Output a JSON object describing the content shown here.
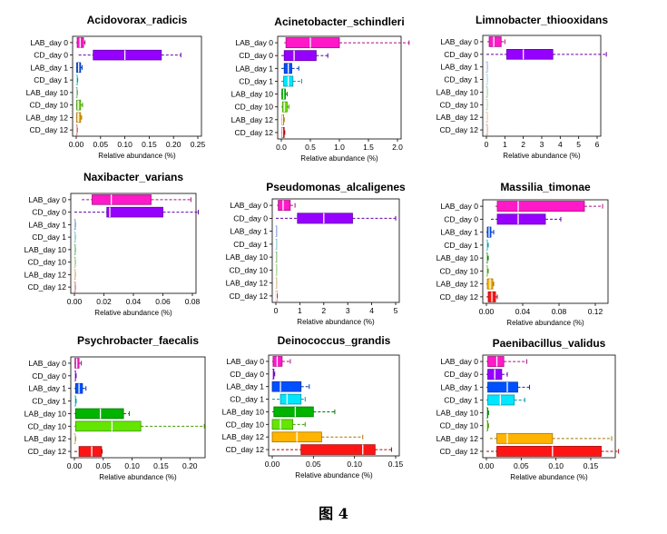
{
  "figure_caption": "图 4",
  "chart_data": [
    {
      "type": "boxplot",
      "title": "Acidovorax_radicis",
      "xlabel": "Relative abundance (%)",
      "xlim": [
        0,
        0.25
      ],
      "xticks": [
        "0.00",
        "0.05",
        "0.10",
        "0.15",
        "0.20",
        "0.25"
      ],
      "categories": [
        "LAB_day 0",
        "CD_day 0",
        "LAB_day 1",
        "CD_day 1",
        "LAB_day 10",
        "CD_day 10",
        "LAB_day 12",
        "CD_day 12"
      ],
      "boxes": [
        {
          "min": 0.0,
          "q1": 0.002,
          "median": 0.008,
          "q3": 0.015,
          "max": 0.018
        },
        {
          "min": 0.005,
          "q1": 0.035,
          "median": 0.1,
          "q3": 0.175,
          "max": 0.215
        },
        {
          "min": 0.0,
          "q1": 0.001,
          "median": 0.005,
          "q3": 0.009,
          "max": 0.012
        },
        {
          "min": 0.0,
          "q1": 0.0,
          "median": 0.0,
          "q3": 0.002,
          "max": 0.003
        },
        {
          "min": 0.0,
          "q1": 0.0,
          "median": 0.0,
          "q3": 0.001,
          "max": 0.002
        },
        {
          "min": 0.0,
          "q1": 0.001,
          "median": 0.004,
          "q3": 0.009,
          "max": 0.013
        },
        {
          "min": 0.0,
          "q1": 0.001,
          "median": 0.004,
          "q3": 0.009,
          "max": 0.011
        },
        {
          "min": 0.0,
          "q1": 0.0,
          "median": 0.0,
          "q3": 0.001,
          "max": 0.002
        }
      ]
    },
    {
      "type": "boxplot",
      "title": "Acinetobacter_schindleri",
      "xlabel": "Relative abundance (%)",
      "xlim": [
        0,
        2.0
      ],
      "xticks": [
        "0.0",
        "0.5",
        "1.0",
        "1.5",
        "2.0"
      ],
      "categories": [
        "LAB_day 0",
        "CD_day 0",
        "LAB_day 1",
        "CD_day 1",
        "LAB_day 10",
        "CD_day 10",
        "LAB_day 12",
        "CD_day 12"
      ],
      "boxes": [
        {
          "min": 0.05,
          "q1": 0.08,
          "median": 0.5,
          "q3": 1.0,
          "max": 2.2
        },
        {
          "min": 0.0,
          "q1": 0.05,
          "median": 0.22,
          "q3": 0.6,
          "max": 0.8
        },
        {
          "min": 0.0,
          "q1": 0.05,
          "median": 0.12,
          "q3": 0.18,
          "max": 0.3
        },
        {
          "min": 0.0,
          "q1": 0.04,
          "median": 0.12,
          "q3": 0.2,
          "max": 0.35
        },
        {
          "min": 0.0,
          "q1": 0.01,
          "median": 0.04,
          "q3": 0.07,
          "max": 0.1
        },
        {
          "min": 0.0,
          "q1": 0.02,
          "median": 0.05,
          "q3": 0.1,
          "max": 0.13
        },
        {
          "min": 0.0,
          "q1": 0.01,
          "median": 0.02,
          "q3": 0.04,
          "max": 0.05
        },
        {
          "min": 0.0,
          "q1": 0.01,
          "median": 0.02,
          "q3": 0.05,
          "max": 0.06
        }
      ]
    },
    {
      "type": "boxplot",
      "title": "Limnobacter_thiooxidans",
      "xlabel": "Relative abundance (%)",
      "xlim": [
        0,
        6
      ],
      "xticks": [
        "0",
        "1",
        "2",
        "3",
        "4",
        "5",
        "6"
      ],
      "categories": [
        "LAB_day 0",
        "CD_day 0",
        "LAB_day 1",
        "CD_day 1",
        "LAB_day 10",
        "CD_day 10",
        "LAB_day 12",
        "CD_day 12"
      ],
      "boxes": [
        {
          "min": 0.05,
          "q1": 0.15,
          "median": 0.4,
          "q3": 0.8,
          "max": 1.0
        },
        {
          "min": 0.0,
          "q1": 1.1,
          "median": 2.0,
          "q3": 3.6,
          "max": 6.5
        },
        {
          "min": 0.0,
          "q1": 0.0,
          "median": 0.01,
          "q3": 0.02,
          "max": 0.03
        },
        {
          "min": 0.0,
          "q1": 0.0,
          "median": 0.01,
          "q3": 0.02,
          "max": 0.03
        },
        {
          "min": 0.0,
          "q1": 0.0,
          "median": 0.01,
          "q3": 0.02,
          "max": 0.03
        },
        {
          "min": 0.0,
          "q1": 0.0,
          "median": 0.01,
          "q3": 0.02,
          "max": 0.03
        },
        {
          "min": 0.0,
          "q1": 0.0,
          "median": 0.01,
          "q3": 0.02,
          "max": 0.03
        },
        {
          "min": 0.0,
          "q1": 0.0,
          "median": 0.01,
          "q3": 0.02,
          "max": 0.03
        }
      ]
    },
    {
      "type": "boxplot",
      "title": "Naxibacter_varians",
      "xlabel": "Relative abundance (%)",
      "xlim": [
        0,
        0.08
      ],
      "xticks": [
        "0.00",
        "0.02",
        "0.04",
        "0.06",
        "0.08"
      ],
      "categories": [
        "LAB_day 0",
        "CD_day 0",
        "LAB_day 1",
        "CD_day 1",
        "LAB_day 10",
        "CD_day 10",
        "LAB_day 12",
        "CD_day 12"
      ],
      "boxes": [
        {
          "min": 0.005,
          "q1": 0.012,
          "median": 0.025,
          "q3": 0.052,
          "max": 0.079
        },
        {
          "min": 0.0,
          "q1": 0.022,
          "median": 0.024,
          "q3": 0.06,
          "max": 0.084
        },
        {
          "min": 0.0,
          "q1": 0.0,
          "median": 0.0,
          "q3": 0.0003,
          "max": 0.0005
        },
        {
          "min": 0.0,
          "q1": 0.0,
          "median": 0.0,
          "q3": 0.0003,
          "max": 0.0005
        },
        {
          "min": 0.0,
          "q1": 0.0,
          "median": 0.0,
          "q3": 0.0003,
          "max": 0.0005
        },
        {
          "min": 0.0,
          "q1": 0.0,
          "median": 0.0,
          "q3": 0.0003,
          "max": 0.0005
        },
        {
          "min": 0.0,
          "q1": 0.0,
          "median": 0.0,
          "q3": 0.0003,
          "max": 0.0005
        },
        {
          "min": 0.0,
          "q1": 0.0,
          "median": 0.0,
          "q3": 0.0003,
          "max": 0.0005
        }
      ]
    },
    {
      "type": "boxplot",
      "title": "Pseudomonas_alcaligenes",
      "xlabel": "Relative abundance (%)",
      "xlim": [
        0,
        5
      ],
      "xticks": [
        "0",
        "1",
        "2",
        "3",
        "4",
        "5"
      ],
      "categories": [
        "LAB_day 0",
        "CD_day 0",
        "LAB_day 1",
        "CD_day 1",
        "LAB_day 10",
        "CD_day 10",
        "LAB_day 12",
        "CD_day 12"
      ],
      "boxes": [
        {
          "min": 0.05,
          "q1": 0.1,
          "median": 0.3,
          "q3": 0.6,
          "max": 0.8
        },
        {
          "min": 0.0,
          "q1": 0.9,
          "median": 2.0,
          "q3": 3.2,
          "max": 5.0
        },
        {
          "min": 0.0,
          "q1": 0.0,
          "median": 0.0,
          "q3": 0.01,
          "max": 0.02
        },
        {
          "min": 0.0,
          "q1": 0.0,
          "median": 0.0,
          "q3": 0.01,
          "max": 0.02
        },
        {
          "min": 0.0,
          "q1": 0.0,
          "median": 0.0,
          "q3": 0.01,
          "max": 0.02
        },
        {
          "min": 0.0,
          "q1": 0.0,
          "median": 0.0,
          "q3": 0.01,
          "max": 0.02
        },
        {
          "min": 0.0,
          "q1": 0.0,
          "median": 0.0,
          "q3": 0.01,
          "max": 0.02
        },
        {
          "min": 0.0,
          "q1": 0.01,
          "median": 0.02,
          "q3": 0.04,
          "max": 0.06
        }
      ]
    },
    {
      "type": "boxplot",
      "title": "Massilia_timonae",
      "xlabel": "Relative abundance (%)",
      "xlim": [
        0,
        0.13
      ],
      "xticks": [
        "0.00",
        "0.04",
        "0.08",
        "0.12"
      ],
      "xtickvals": [
        0,
        0.04,
        0.08,
        0.12
      ],
      "categories": [
        "LAB_day 0",
        "CD_day 0",
        "LAB_day 1",
        "CD_day 1",
        "LAB_day 10",
        "CD_day 10",
        "LAB_day 12",
        "CD_day 12"
      ],
      "boxes": [
        {
          "min": 0.01,
          "q1": 0.012,
          "median": 0.035,
          "q3": 0.108,
          "max": 0.128
        },
        {
          "min": 0.005,
          "q1": 0.012,
          "median": 0.035,
          "q3": 0.065,
          "max": 0.082
        },
        {
          "min": 0.0,
          "q1": 0.001,
          "median": 0.003,
          "q3": 0.005,
          "max": 0.008
        },
        {
          "min": 0.0,
          "q1": 0.0,
          "median": 0.0,
          "q3": 0.001,
          "max": 0.002
        },
        {
          "min": 0.0,
          "q1": 0.0,
          "median": 0.0,
          "q3": 0.001,
          "max": 0.002
        },
        {
          "min": 0.0,
          "q1": 0.0,
          "median": 0.0,
          "q3": 0.001,
          "max": 0.002
        },
        {
          "min": 0.0,
          "q1": 0.001,
          "median": 0.004,
          "q3": 0.007,
          "max": 0.008
        },
        {
          "min": 0.0,
          "q1": 0.002,
          "median": 0.006,
          "q3": 0.01,
          "max": 0.012
        }
      ]
    },
    {
      "type": "boxplot",
      "title": "Psychrobacter_faecalis",
      "xlabel": "Relative abundance (%)",
      "xlim": [
        0,
        0.22
      ],
      "xticks": [
        "0.00",
        "0.05",
        "0.10",
        "0.15",
        "0.20"
      ],
      "xtickvals": [
        0,
        0.05,
        0.1,
        0.15,
        0.2
      ],
      "categories": [
        "LAB_day 0",
        "CD_day 0",
        "LAB_day 1",
        "CD_day 1",
        "LAB_day 10",
        "CD_day 10",
        "LAB_day 12",
        "CD_day 12"
      ],
      "boxes": [
        {
          "min": 0.0,
          "q1": 0.001,
          "median": 0.004,
          "q3": 0.008,
          "max": 0.012
        },
        {
          "min": 0.0,
          "q1": 0.0,
          "median": 0.0,
          "q3": 0.002,
          "max": 0.003
        },
        {
          "min": 0.0,
          "q1": 0.002,
          "median": 0.008,
          "q3": 0.014,
          "max": 0.02
        },
        {
          "min": 0.0,
          "q1": 0.0,
          "median": 0.0,
          "q3": 0.002,
          "max": 0.003
        },
        {
          "min": 0.0,
          "q1": 0.002,
          "median": 0.045,
          "q3": 0.085,
          "max": 0.095
        },
        {
          "min": 0.0,
          "q1": 0.002,
          "median": 0.065,
          "q3": 0.115,
          "max": 0.225
        },
        {
          "min": 0.0,
          "q1": 0.0,
          "median": 0.0,
          "q3": 0.001,
          "max": 0.002
        },
        {
          "min": 0.0,
          "q1": 0.008,
          "median": 0.03,
          "q3": 0.047,
          "max": 0.048
        }
      ]
    },
    {
      "type": "boxplot",
      "title": "Deinococcus_grandis",
      "xlabel": "Relative abundance (%)",
      "xlim": [
        0,
        0.15
      ],
      "xticks": [
        "0.00",
        "0.05",
        "0.10",
        "0.15"
      ],
      "xtickvals": [
        0,
        0.05,
        0.1,
        0.15
      ],
      "categories": [
        "LAB_day 0",
        "CD_day 0",
        "LAB_day 1",
        "CD_day 1",
        "LAB_day 10",
        "CD_day 10",
        "LAB_day 12",
        "CD_day 12"
      ],
      "boxes": [
        {
          "min": 0.0,
          "q1": 0.001,
          "median": 0.006,
          "q3": 0.012,
          "max": 0.022
        },
        {
          "min": 0.0,
          "q1": 0.0,
          "median": 0.0,
          "q3": 0.002,
          "max": 0.003
        },
        {
          "min": 0.0,
          "q1": 0.0,
          "median": 0.01,
          "q3": 0.035,
          "max": 0.045
        },
        {
          "min": 0.0,
          "q1": 0.01,
          "median": 0.018,
          "q3": 0.035,
          "max": 0.04
        },
        {
          "min": 0.0,
          "q1": 0.002,
          "median": 0.028,
          "q3": 0.05,
          "max": 0.076
        },
        {
          "min": 0.0,
          "q1": 0.0,
          "median": 0.01,
          "q3": 0.025,
          "max": 0.04
        },
        {
          "min": 0.0,
          "q1": 0.0,
          "median": 0.03,
          "q3": 0.06,
          "max": 0.11
        },
        {
          "min": 0.0,
          "q1": 0.035,
          "median": 0.11,
          "q3": 0.125,
          "max": 0.145
        }
      ]
    },
    {
      "type": "boxplot",
      "title": "Paenibacillus_validus",
      "xlabel": "Relative abundance (%)",
      "xlim": [
        0,
        0.18
      ],
      "xticks": [
        "0.00",
        "0.05",
        "0.10",
        "0.15"
      ],
      "xtickvals": [
        0,
        0.05,
        0.1,
        0.15
      ],
      "categories": [
        "LAB_day 0",
        "CD_day 0",
        "LAB_day 1",
        "CD_day 1",
        "LAB_day 10",
        "CD_day 10",
        "LAB_day 12",
        "CD_day 12"
      ],
      "boxes": [
        {
          "min": 0.0,
          "q1": 0.002,
          "median": 0.015,
          "q3": 0.025,
          "max": 0.058
        },
        {
          "min": 0.0,
          "q1": 0.002,
          "median": 0.012,
          "q3": 0.022,
          "max": 0.03
        },
        {
          "min": 0.0,
          "q1": 0.002,
          "median": 0.03,
          "q3": 0.045,
          "max": 0.062
        },
        {
          "min": 0.0,
          "q1": 0.002,
          "median": 0.02,
          "q3": 0.04,
          "max": 0.055
        },
        {
          "min": 0.0,
          "q1": 0.0,
          "median": 0.0,
          "q3": 0.002,
          "max": 0.003
        },
        {
          "min": 0.0,
          "q1": 0.0,
          "median": 0.0,
          "q3": 0.002,
          "max": 0.003
        },
        {
          "min": 0.005,
          "q1": 0.015,
          "median": 0.03,
          "q3": 0.095,
          "max": 0.18
        },
        {
          "min": 0.0,
          "q1": 0.015,
          "median": 0.095,
          "q3": 0.165,
          "max": 0.19
        }
      ]
    }
  ],
  "colors": {
    "LAB_day 0": "#ff19c8",
    "CD_day 0": "#9600ff",
    "LAB_day 1": "#0050ff",
    "CD_day 1": "#00e6ff",
    "LAB_day 10": "#00b400",
    "CD_day 10": "#64e600",
    "LAB_day 12": "#ffb400",
    "CD_day 12": "#ff1414"
  }
}
